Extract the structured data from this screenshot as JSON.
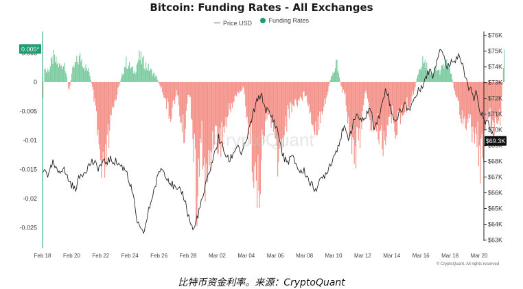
{
  "chart_data": {
    "type": "bar+line",
    "title": "Bitcoin: Funding Rates - All Exchanges",
    "legend": [
      {
        "name": "Price USD",
        "color": "#555555",
        "shape": "line"
      },
      {
        "name": "Funding Rates",
        "color": "#1a9e6e",
        "shape": "dot"
      }
    ],
    "x_ticks": [
      "Feb 18",
      "Feb 20",
      "Feb 22",
      "Feb 24",
      "Feb 26",
      "Feb 28",
      "Mar 02",
      "Mar 04",
      "Mar 06",
      "Mar 08",
      "Mar 10",
      "Mar 12",
      "Mar 14",
      "Mar 16",
      "Mar 18",
      "Mar 20"
    ],
    "y_left": {
      "ticks": [
        "0.005",
        "0",
        "-0.005",
        "-0.01",
        "-0.015",
        "-0.02",
        "-0.025"
      ],
      "values": [
        0.005,
        0,
        -0.005,
        -0.01,
        -0.015,
        -0.02,
        -0.025
      ],
      "range": [
        -0.0285,
        0.0087
      ]
    },
    "y_right": {
      "ticks": [
        "$76K",
        "$75K",
        "$74K",
        "$73K",
        "$72K",
        "$71K",
        "$70K",
        "$69K",
        "$68K",
        "$67K",
        "$66K",
        "$65K",
        "$64K",
        "$63K"
      ],
      "values": [
        76,
        75,
        74,
        73,
        72,
        71,
        70,
        69,
        68,
        67,
        66,
        65,
        64,
        63
      ],
      "unit": "thousand USD",
      "range": [
        62.5,
        76.25
      ]
    },
    "colors": {
      "positive": "#7fcca3",
      "negative": "#f4948c",
      "price": "#222222",
      "current_badge": "#111111"
    },
    "funding_keypoints": [
      [
        0.0,
        -0.005
      ],
      [
        0.05,
        0.004
      ],
      [
        0.1,
        0.002
      ],
      [
        0.25,
        0.003
      ],
      [
        0.35,
        0.005
      ],
      [
        0.45,
        0.004
      ],
      [
        0.6,
        0.003
      ],
      [
        0.75,
        0.004
      ],
      [
        0.9,
        -0.002
      ],
      [
        1.0,
        0.002
      ],
      [
        1.15,
        0.004
      ],
      [
        1.3,
        0.005
      ],
      [
        1.45,
        0.003
      ],
      [
        1.6,
        0.002
      ],
      [
        1.75,
        -0.003
      ],
      [
        1.9,
        -0.012
      ],
      [
        2.05,
        -0.022
      ],
      [
        2.2,
        -0.014
      ],
      [
        2.4,
        -0.006
      ],
      [
        2.55,
        -0.002
      ],
      [
        2.7,
        0.001
      ],
      [
        2.85,
        0.004
      ],
      [
        3.0,
        0.003
      ],
      [
        3.15,
        0.002
      ],
      [
        3.3,
        0.005
      ],
      [
        3.45,
        0.004
      ],
      [
        3.6,
        0.003
      ],
      [
        3.75,
        0.002
      ],
      [
        3.9,
        0.001
      ],
      [
        4.05,
        -0.001
      ],
      [
        4.2,
        -0.003
      ],
      [
        4.35,
        -0.007
      ],
      [
        4.5,
        -0.004
      ],
      [
        4.6,
        -0.002
      ],
      [
        4.75,
        -0.008
      ],
      [
        4.85,
        -0.011
      ],
      [
        4.95,
        -0.004
      ],
      [
        5.05,
        -0.002
      ],
      [
        5.15,
        -0.01
      ],
      [
        5.3,
        -0.026
      ],
      [
        5.45,
        -0.01
      ],
      [
        5.6,
        -0.022
      ],
      [
        5.75,
        -0.015
      ],
      [
        5.9,
        -0.009
      ],
      [
        6.0,
        -0.012
      ],
      [
        6.15,
        -0.011
      ],
      [
        6.3,
        -0.008
      ],
      [
        6.45,
        -0.005
      ],
      [
        6.6,
        -0.003
      ],
      [
        6.75,
        -0.002
      ],
      [
        6.9,
        -0.001
      ],
      [
        7.0,
        -0.006
      ],
      [
        7.2,
        -0.014
      ],
      [
        7.35,
        -0.024
      ],
      [
        7.5,
        -0.016
      ],
      [
        7.65,
        -0.008
      ],
      [
        7.8,
        -0.006
      ],
      [
        7.95,
        -0.012
      ],
      [
        8.1,
        -0.016
      ],
      [
        8.3,
        -0.009
      ],
      [
        8.5,
        -0.005
      ],
      [
        8.7,
        -0.004
      ],
      [
        8.9,
        -0.003
      ],
      [
        9.05,
        -0.002
      ],
      [
        9.2,
        -0.007
      ],
      [
        9.4,
        -0.009
      ],
      [
        9.6,
        -0.005
      ],
      [
        9.75,
        -0.003
      ],
      [
        9.9,
        0.001
      ],
      [
        10.0,
        0.002
      ],
      [
        10.1,
        0.004
      ],
      [
        10.25,
        -0.001
      ],
      [
        10.4,
        -0.003
      ],
      [
        10.55,
        -0.01
      ],
      [
        10.7,
        -0.013
      ],
      [
        10.85,
        -0.014
      ],
      [
        11.0,
        -0.004
      ],
      [
        11.1,
        -0.002
      ],
      [
        11.25,
        -0.008
      ],
      [
        11.4,
        -0.009
      ],
      [
        11.55,
        -0.01
      ],
      [
        11.7,
        -0.012
      ],
      [
        11.85,
        -0.008
      ],
      [
        12.0,
        -0.007
      ],
      [
        12.15,
        -0.009
      ],
      [
        12.3,
        -0.007
      ],
      [
        12.45,
        -0.005
      ],
      [
        12.6,
        -0.004
      ],
      [
        12.75,
        -0.002
      ],
      [
        12.9,
        0.002
      ],
      [
        13.05,
        0.004
      ],
      [
        13.2,
        0.003
      ],
      [
        13.35,
        0.001
      ],
      [
        13.5,
        0.003
      ],
      [
        13.6,
        0.002
      ],
      [
        13.75,
        0.003
      ],
      [
        13.9,
        0.004
      ],
      [
        14.05,
        0.001
      ],
      [
        14.2,
        -0.003
      ],
      [
        14.35,
        -0.006
      ],
      [
        14.5,
        -0.007
      ],
      [
        14.65,
        -0.009
      ],
      [
        14.8,
        -0.01
      ],
      [
        14.95,
        -0.012
      ],
      [
        15.05,
        -0.017
      ],
      [
        15.2,
        -0.009
      ],
      [
        15.35,
        -0.008
      ],
      [
        15.5,
        -0.009
      ],
      [
        15.6,
        -0.006
      ],
      [
        15.7,
        -0.009
      ],
      [
        15.85,
        0.005
      ]
    ],
    "price_keypoints": [
      [
        0.0,
        67.2
      ],
      [
        0.1,
        67.6
      ],
      [
        0.2,
        67.0
      ],
      [
        0.35,
        67.9
      ],
      [
        0.5,
        67.3
      ],
      [
        0.7,
        67.6
      ],
      [
        0.9,
        66.8
      ],
      [
        1.1,
        66.2
      ],
      [
        1.3,
        67.1
      ],
      [
        1.5,
        67.5
      ],
      [
        1.7,
        68.0
      ],
      [
        1.9,
        67.6
      ],
      [
        2.1,
        67.9
      ],
      [
        2.3,
        68.1
      ],
      [
        2.5,
        68.0
      ],
      [
        2.7,
        67.7
      ],
      [
        2.9,
        67.4
      ],
      [
        3.0,
        66.5
      ],
      [
        3.1,
        66.0
      ],
      [
        3.2,
        64.6
      ],
      [
        3.35,
        63.6
      ],
      [
        3.45,
        63.4
      ],
      [
        3.55,
        64.0
      ],
      [
        3.65,
        64.9
      ],
      [
        3.8,
        66.0
      ],
      [
        3.95,
        66.9
      ],
      [
        4.05,
        67.6
      ],
      [
        4.2,
        67.3
      ],
      [
        4.35,
        66.8
      ],
      [
        4.5,
        66.4
      ],
      [
        4.65,
        66.0
      ],
      [
        4.75,
        66.2
      ],
      [
        4.85,
        65.8
      ],
      [
        4.95,
        65.1
      ],
      [
        5.0,
        64.6
      ],
      [
        5.1,
        64.0
      ],
      [
        5.2,
        63.6
      ],
      [
        5.3,
        64.4
      ],
      [
        5.45,
        65.3
      ],
      [
        5.6,
        66.4
      ],
      [
        5.75,
        67.5
      ],
      [
        5.9,
        68.4
      ],
      [
        6.05,
        69.5
      ],
      [
        6.25,
        68.6
      ],
      [
        6.4,
        68.0
      ],
      [
        6.55,
        68.5
      ],
      [
        6.7,
        69.1
      ],
      [
        6.85,
        68.4
      ],
      [
        7.0,
        69.3
      ],
      [
        7.15,
        70.4
      ],
      [
        7.25,
        71.1
      ],
      [
        7.35,
        71.7
      ],
      [
        7.5,
        72.3
      ],
      [
        7.65,
        71.4
      ],
      [
        7.8,
        71.0
      ],
      [
        7.95,
        70.6
      ],
      [
        8.1,
        69.8
      ],
      [
        8.25,
        68.4
      ],
      [
        8.4,
        67.9
      ],
      [
        8.55,
        68.3
      ],
      [
        8.7,
        67.9
      ],
      [
        8.85,
        67.3
      ],
      [
        9.0,
        67.4
      ],
      [
        9.15,
        66.8
      ],
      [
        9.3,
        66.3
      ],
      [
        9.45,
        66.4
      ],
      [
        9.6,
        66.9
      ],
      [
        9.75,
        67.3
      ],
      [
        9.9,
        67.9
      ],
      [
        10.05,
        68.5
      ],
      [
        10.2,
        69.3
      ],
      [
        10.35,
        70.1
      ],
      [
        10.5,
        69.5
      ],
      [
        10.65,
        70.2
      ],
      [
        10.8,
        71.1
      ],
      [
        10.95,
        70.4
      ],
      [
        11.1,
        70.9
      ],
      [
        11.25,
        71.4
      ],
      [
        11.4,
        70.2
      ],
      [
        11.55,
        70.8
      ],
      [
        11.7,
        71.8
      ],
      [
        11.8,
        72.8
      ],
      [
        11.9,
        72.0
      ],
      [
        12.0,
        71.0
      ],
      [
        12.15,
        70.6
      ],
      [
        12.3,
        71.2
      ],
      [
        12.45,
        71.6
      ],
      [
        12.6,
        71.3
      ],
      [
        12.75,
        71.9
      ],
      [
        12.9,
        72.4
      ],
      [
        13.05,
        72.9
      ],
      [
        13.2,
        73.4
      ],
      [
        13.3,
        73.9
      ],
      [
        13.4,
        73.4
      ],
      [
        13.5,
        74.1
      ],
      [
        13.6,
        74.9
      ],
      [
        13.7,
        75.3
      ],
      [
        13.8,
        74.6
      ],
      [
        13.9,
        73.9
      ],
      [
        14.0,
        74.2
      ],
      [
        14.1,
        74.6
      ],
      [
        14.2,
        74.4
      ],
      [
        14.3,
        74.9
      ],
      [
        14.4,
        74.2
      ],
      [
        14.5,
        73.5
      ],
      [
        14.6,
        72.9
      ],
      [
        14.7,
        72.6
      ],
      [
        14.8,
        71.9
      ],
      [
        14.9,
        72.3
      ],
      [
        15.0,
        71.4
      ],
      [
        15.1,
        71.0
      ],
      [
        15.2,
        70.3
      ],
      [
        15.3,
        70.6
      ],
      [
        15.4,
        70.1
      ],
      [
        15.5,
        69.4
      ],
      [
        15.6,
        69.2
      ],
      [
        15.7,
        69.0
      ]
    ],
    "current_price_label": "$69.3K",
    "current_funding_label": "0.005*"
  },
  "watermark": "CryptoQuant",
  "copyright": "© CryptoQuant. All rights reserved",
  "caption": "比特币资金利率。来源：CryptoQuant"
}
